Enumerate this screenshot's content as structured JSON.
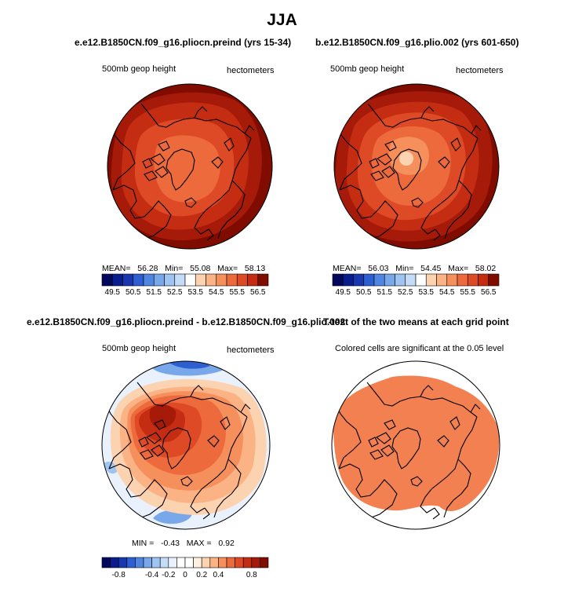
{
  "figure": {
    "title": "JJA",
    "colors": {
      "pos": [
        "#fff0e0",
        "#fcd3b0",
        "#fbb284",
        "#f58f5c",
        "#ec6a3c",
        "#de4a26",
        "#c52d13",
        "#a51a08",
        "#800c00"
      ],
      "neg": [
        "#e8f1fc",
        "#c5dcf7",
        "#9fc4f2",
        "#78a7ea",
        "#4f86e2",
        "#2e5fd0",
        "#1838b0",
        "#0a1d8c",
        "#03085c"
      ],
      "significant": "#f28050",
      "coast": "#000000"
    }
  },
  "panels": [
    {
      "id": "p1",
      "title": "e.e12.B1850CN.f09_g16.pliocn.preind (yrs 15-34)",
      "left_label": "500mb geop height",
      "right_label": "hectometers",
      "stats": {
        "mean_label": "MEAN=",
        "mean": "56.28",
        "min_label": "Min=",
        "min": "55.08",
        "max_label": "Max=",
        "max": "58.13"
      }
    },
    {
      "id": "p2",
      "title": "b.e12.B1850CN.f09_g16.plio.002 (yrs 601-650)",
      "left_label": "500mb geop height",
      "right_label": "hectometers",
      "stats": {
        "mean_label": "MEAN=",
        "mean": "56.03",
        "min_label": "Min=",
        "min": "54.45",
        "max_label": "Max=",
        "max": "58.02"
      }
    },
    {
      "id": "p3",
      "title": "e.e12.B1850CN.f09_g16.pliocn.preind - b.e12.B1850CN.f09_g16.plio.002",
      "left_label": "500mb geop height",
      "right_label": "hectometers",
      "stats": {
        "min_label": "MIN =",
        "min": "-0.43",
        "max_label": "MAX =",
        "max": "0.92"
      }
    },
    {
      "id": "p4",
      "title": "T-test of the two means at each grid point",
      "left_label": "Colored cells are significant at the 0.05 level"
    }
  ],
  "chart_data": [
    {
      "type": "heatmap",
      "title": "e.e12.B1850CN.f09_g16.pliocn.preind (yrs 15-34)",
      "variable": "500mb geop height",
      "units": "hectometers",
      "projection": "polar stereographic (north pole)",
      "colorbar_levels": [
        49.5,
        50,
        50.5,
        51,
        51.5,
        52,
        52.5,
        53,
        53.5,
        54,
        54.5,
        55,
        55.5,
        56,
        56.5
      ],
      "colorbar_tick_labels": [
        "49.5",
        "50.5",
        "51.5",
        "52.5",
        "53.5",
        "54.5",
        "55.5",
        "56.5"
      ],
      "contour_fill_levels": [
        55.0,
        55.5,
        56.0,
        56.5,
        57.0
      ],
      "mean": 56.28,
      "min": 55.08,
      "max": 58.13
    },
    {
      "type": "heatmap",
      "title": "b.e12.B1850CN.f09_g16.plio.002 (yrs 601-650)",
      "variable": "500mb geop height",
      "units": "hectometers",
      "projection": "polar stereographic (north pole)",
      "colorbar_levels": [
        49.5,
        50,
        50.5,
        51,
        51.5,
        52,
        52.5,
        53,
        53.5,
        54,
        54.5,
        55,
        55.5,
        56,
        56.5
      ],
      "colorbar_tick_labels": [
        "49.5",
        "50.5",
        "51.5",
        "52.5",
        "53.5",
        "54.5",
        "55.5",
        "56.5"
      ],
      "contour_fill_levels": [
        54.5,
        55.0,
        55.5,
        56.0,
        56.5,
        57.0
      ],
      "mean": 56.03,
      "min": 54.45,
      "max": 58.02
    },
    {
      "type": "heatmap",
      "title": "e.e12.B1850CN.f09_g16.pliocn.preind - b.e12.B1850CN.f09_g16.plio.002",
      "variable": "500mb geop height difference",
      "units": "hectometers",
      "projection": "polar stereographic (north pole)",
      "colorbar_levels": [
        -0.9,
        -0.8,
        -0.7,
        -0.6,
        -0.5,
        -0.4,
        -0.3,
        -0.2,
        -0.1,
        0,
        0.1,
        0.2,
        0.3,
        0.4,
        0.5,
        0.6,
        0.7,
        0.8,
        0.9
      ],
      "colorbar_tick_labels": [
        "-0.8",
        "-0.4",
        "-0.2",
        "0",
        "0.2",
        "0.4",
        "0.8"
      ],
      "min": -0.43,
      "max": 0.92
    },
    {
      "type": "heatmap",
      "title": "T-test of the two means at each grid point",
      "note": "Colored cells are significant at the 0.05 level",
      "projection": "polar stereographic (north pole)"
    }
  ]
}
